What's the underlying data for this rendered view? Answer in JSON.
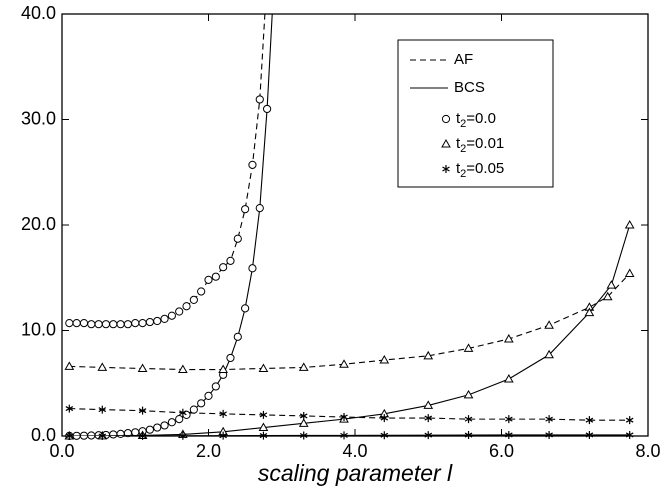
{
  "chart_data": {
    "type": "line",
    "x_label": "scaling parameter l",
    "xlim": [
      0,
      8
    ],
    "ylim": [
      0,
      40
    ],
    "xticks": [
      {
        "value": 0,
        "label": "0.0"
      },
      {
        "value": 2,
        "label": "2.0"
      },
      {
        "value": 4,
        "label": "4.0"
      },
      {
        "value": 6,
        "label": "6.0"
      },
      {
        "value": 8,
        "label": "8.0"
      }
    ],
    "yticks": [
      {
        "value": 0,
        "label": "0.0"
      },
      {
        "value": 10,
        "label": "10.0"
      },
      {
        "value": 20,
        "label": "20.0"
      },
      {
        "value": 30,
        "label": "30.0"
      },
      {
        "value": 40,
        "label": "40.0"
      }
    ],
    "color": "#000000",
    "legend": {
      "lines": [
        {
          "label": "AF",
          "line": "dashed"
        },
        {
          "label": "BCS",
          "line": "solid"
        }
      ],
      "markers": [
        {
          "label": "t",
          "sub": "2",
          "rest": "=0.0",
          "marker": "circle"
        },
        {
          "label": "t",
          "sub": "2",
          "rest": "=0.01",
          "marker": "triangle"
        },
        {
          "label": "t",
          "sub": "2",
          "rest": "=0.05",
          "marker": "star"
        }
      ]
    },
    "series": [
      {
        "line": "dashed",
        "marker": "circle",
        "x": [
          0.1,
          0.2,
          0.3,
          0.4,
          0.5,
          0.6,
          0.7,
          0.8,
          0.9,
          1.0,
          1.1,
          1.2,
          1.3,
          1.4,
          1.5,
          1.6,
          1.7,
          1.8,
          1.9,
          2.0,
          2.1,
          2.2,
          2.3,
          2.4,
          2.5,
          2.6,
          2.7,
          2.77
        ],
        "values": [
          10.7,
          10.7,
          10.7,
          10.6,
          10.6,
          10.6,
          10.6,
          10.6,
          10.6,
          10.7,
          10.7,
          10.8,
          10.9,
          11.1,
          11.4,
          11.8,
          12.3,
          12.9,
          13.7,
          14.8,
          15.1,
          16.0,
          16.6,
          18.7,
          21.5,
          25.7,
          31.9,
          40
        ]
      },
      {
        "line": "solid",
        "marker": "circle",
        "x": [
          0.1,
          0.2,
          0.3,
          0.4,
          0.5,
          0.6,
          0.7,
          0.8,
          0.9,
          1.0,
          1.1,
          1.2,
          1.3,
          1.4,
          1.5,
          1.6,
          1.7,
          1.8,
          1.9,
          2.0,
          2.1,
          2.2,
          2.3,
          2.4,
          2.5,
          2.6,
          2.7,
          2.8,
          2.87
        ],
        "values": [
          0.01,
          0.02,
          0.03,
          0.05,
          0.07,
          0.1,
          0.15,
          0.2,
          0.27,
          0.35,
          0.45,
          0.6,
          0.8,
          1.0,
          1.3,
          1.6,
          2.0,
          2.5,
          3.1,
          3.8,
          4.7,
          5.8,
          7.4,
          9.4,
          12.1,
          15.9,
          21.6,
          31.0,
          40
        ]
      },
      {
        "line": "dashed",
        "marker": "triangle",
        "x": [
          0.1,
          0.55,
          1.1,
          1.65,
          2.2,
          2.75,
          3.3,
          3.85,
          4.4,
          5.0,
          5.55,
          6.1,
          6.65,
          7.2,
          7.45,
          7.75
        ],
        "values": [
          6.6,
          6.5,
          6.4,
          6.3,
          6.3,
          6.4,
          6.5,
          6.8,
          7.2,
          7.6,
          8.3,
          9.2,
          10.5,
          12.2,
          13.2,
          15.4
        ]
      },
      {
        "line": "solid",
        "marker": "triangle",
        "x": [
          0.1,
          0.55,
          1.1,
          1.65,
          2.2,
          2.75,
          3.3,
          3.85,
          4.4,
          5.0,
          5.55,
          6.1,
          6.65,
          7.2,
          7.5,
          7.75
        ],
        "values": [
          0,
          0.01,
          0.05,
          0.15,
          0.4,
          0.8,
          1.2,
          1.6,
          2.1,
          2.9,
          3.9,
          5.4,
          7.7,
          11.7,
          14.3,
          20.0
        ]
      },
      {
        "line": "dashed",
        "marker": "star",
        "x": [
          0.1,
          0.55,
          1.1,
          1.65,
          2.2,
          2.75,
          3.3,
          3.85,
          4.4,
          5.0,
          5.55,
          6.1,
          6.65,
          7.2,
          7.75
        ],
        "values": [
          2.6,
          2.5,
          2.4,
          2.2,
          2.1,
          2.0,
          1.9,
          1.8,
          1.7,
          1.7,
          1.6,
          1.6,
          1.6,
          1.5,
          1.5
        ]
      },
      {
        "line": "solid",
        "marker": "star",
        "x": [
          0.1,
          0.55,
          1.1,
          1.65,
          2.2,
          2.75,
          3.3,
          3.85,
          4.4,
          5.0,
          5.55,
          6.1,
          6.65,
          7.2,
          7.75
        ],
        "values": [
          0,
          0,
          0.01,
          0.02,
          0.03,
          0.04,
          0.05,
          0.06,
          0.07,
          0.08,
          0.09,
          0.1,
          0.1,
          0.1,
          0.1
        ]
      }
    ]
  }
}
